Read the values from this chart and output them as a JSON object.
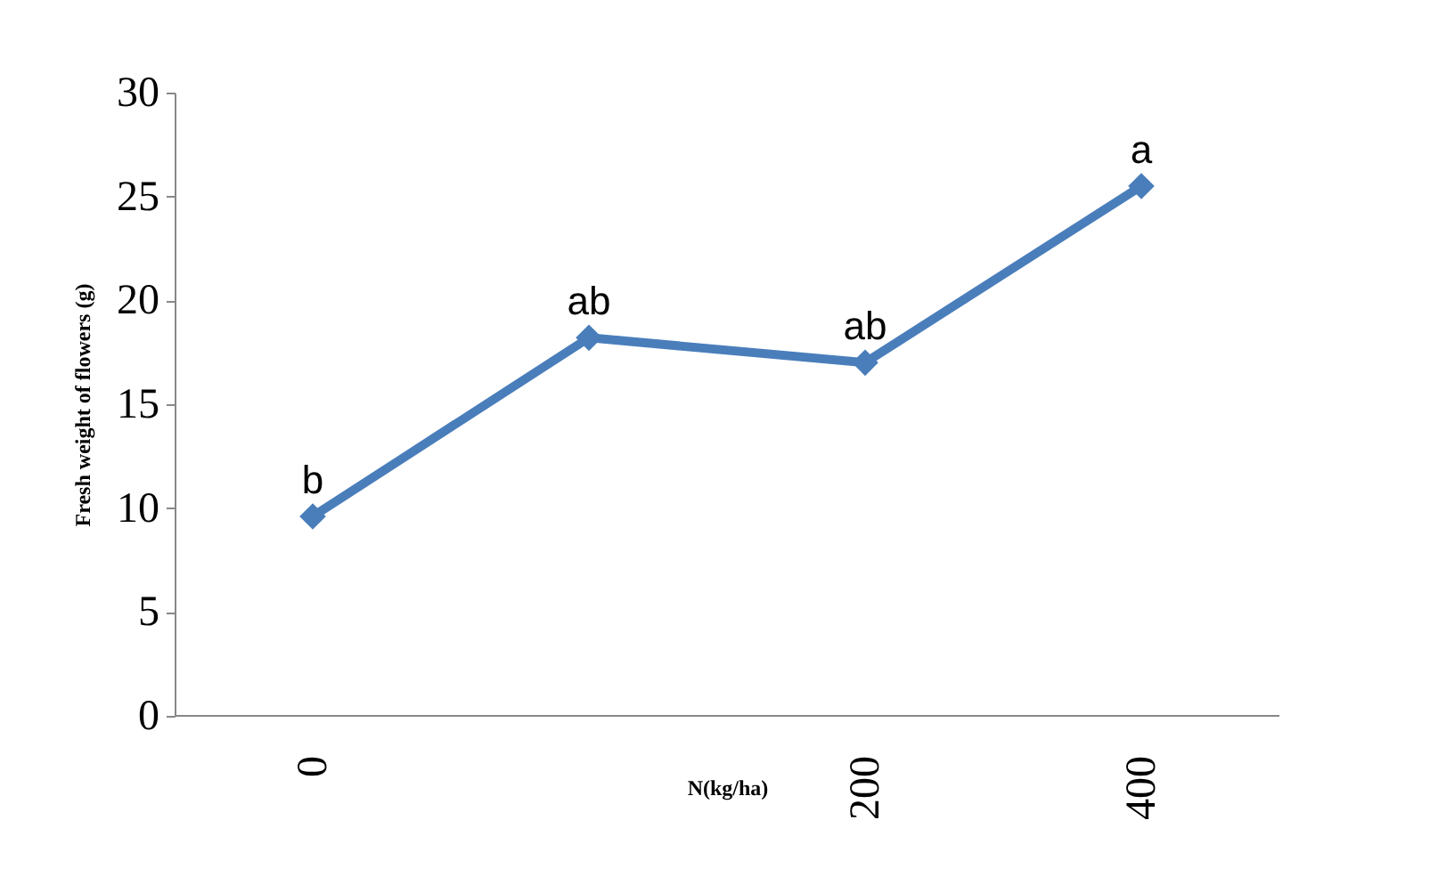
{
  "chart_data": {
    "type": "line",
    "xlabel": "N(kg/ha)",
    "ylabel": "Fresh weight of flowers (g)",
    "categories": [
      "0",
      null,
      "200",
      "400"
    ],
    "series": [
      {
        "color": "#4a7ebb",
        "values": [
          9.6,
          18.2,
          17.0,
          25.5
        ],
        "value_labels": [
          "b",
          "ab",
          "ab",
          "a"
        ]
      }
    ],
    "ylim": [
      0,
      30
    ],
    "yticks": [
      0,
      5,
      10,
      15,
      20,
      25,
      30
    ],
    "grid": false,
    "legend": false,
    "marker": "diamond",
    "line_style": "solid"
  }
}
